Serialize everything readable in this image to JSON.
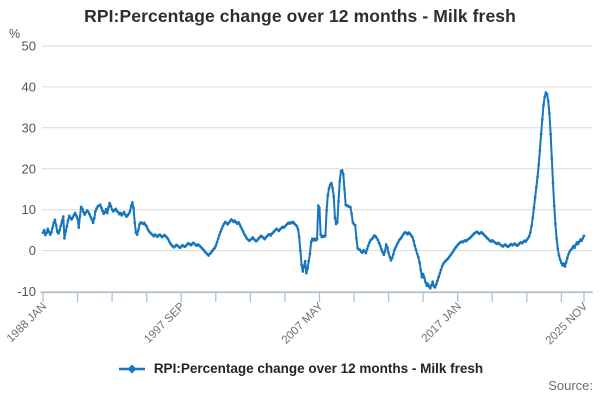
{
  "title": "RPI:Percentage change over 12 months - Milk fresh",
  "y_axis": {
    "unit_label": "%"
  },
  "legend": {
    "label": "RPI:Percentage change over 12 months - Milk fresh"
  },
  "source": {
    "label": "Source:"
  },
  "colors": {
    "line": "#1776bd",
    "grid": "#dadada",
    "axis": "#a9bdd3",
    "y_tick_text": "#555555",
    "x_tick_text": "#6f6f6f"
  },
  "chart_data": {
    "type": "line",
    "title": "RPI:Percentage change over 12 months - Milk fresh",
    "ylabel": "%",
    "ylim": [
      -10,
      50
    ],
    "y_ticks": [
      50,
      40,
      30,
      20,
      10,
      0,
      -10
    ],
    "grid": "horizontal",
    "legend_position": "bottom",
    "frequency": "monthly",
    "x_start": "1988 JAN",
    "x_end": "2025 NOV",
    "x_tick_labels": [
      {
        "month_index": 0,
        "label": "1988 JAN"
      },
      {
        "month_index": 116,
        "label": "1997 SEP"
      },
      {
        "month_index": 232,
        "label": "2007 MAY"
      },
      {
        "month_index": 348,
        "label": "2017 JAN"
      },
      {
        "month_index": 454,
        "label": "2025 NOV"
      }
    ],
    "minor_tick_interval_months": 29,
    "series": [
      {
        "name": "RPI:Percentage change over 12 months - Milk fresh",
        "values": [
          4.4,
          5.0,
          3.8,
          4.3,
          5.3,
          4.6,
          3.9,
          4.4,
          5.6,
          6.8,
          7.5,
          6.2,
          4.6,
          4.2,
          5.0,
          6.1,
          7.3,
          8.3,
          3.0,
          4.6,
          5.9,
          7.4,
          8.5,
          8.0,
          7.6,
          8.1,
          8.7,
          9.2,
          8.5,
          7.8,
          5.6,
          8.4,
          10.7,
          10.2,
          9.4,
          8.8,
          9.3,
          9.8,
          9.5,
          8.9,
          8.2,
          7.6,
          6.8,
          7.9,
          9.6,
          10.3,
          10.8,
          11.0,
          11.2,
          10.5,
          9.7,
          9.0,
          9.4,
          10.1,
          9.2,
          10.6,
          11.6,
          10.9,
          10.0,
          9.6,
          9.9,
          10.2,
          9.7,
          9.4,
          8.9,
          9.2,
          8.6,
          9.0,
          9.4,
          8.8,
          8.3,
          8.6,
          9.0,
          9.6,
          10.9,
          11.8,
          10.4,
          6.8,
          4.4,
          3.9,
          5.0,
          6.4,
          6.9,
          6.7,
          6.5,
          6.8,
          6.3,
          5.9,
          5.2,
          4.7,
          4.4,
          4.1,
          3.8,
          3.5,
          3.9,
          3.7,
          3.4,
          3.7,
          3.9,
          3.6,
          3.3,
          3.6,
          3.8,
          3.5,
          3.2,
          2.8,
          2.2,
          1.7,
          1.3,
          1.0,
          0.8,
          1.1,
          1.4,
          1.2,
          0.9,
          0.7,
          1.0,
          1.3,
          1.1,
          0.9,
          1.2,
          1.5,
          1.8,
          1.6,
          1.3,
          1.6,
          1.9,
          1.7,
          1.4,
          1.2,
          1.5,
          1.3,
          1.0,
          0.7,
          0.4,
          0.1,
          -0.3,
          -0.6,
          -0.9,
          -1.2,
          -0.8,
          -0.5,
          -0.1,
          0.3,
          0.6,
          1.2,
          2.0,
          2.9,
          3.8,
          4.6,
          5.3,
          6.0,
          6.6,
          7.0,
          6.7,
          6.4,
          6.8,
          7.2,
          7.6,
          7.4,
          7.0,
          7.3,
          6.9,
          6.6,
          6.9,
          6.4,
          5.8,
          5.2,
          4.6,
          4.0,
          3.5,
          3.0,
          2.7,
          2.4,
          2.6,
          2.9,
          3.2,
          2.8,
          2.5,
          2.3,
          2.6,
          3.0,
          3.3,
          3.6,
          3.4,
          3.1,
          2.8,
          3.2,
          3.5,
          3.8,
          4.0,
          3.7,
          4.1,
          4.4,
          4.7,
          5.0,
          5.3,
          5.1,
          4.8,
          5.2,
          5.5,
          5.8,
          5.6,
          5.9,
          6.2,
          6.5,
          6.8,
          6.6,
          6.9,
          6.7,
          7.0,
          6.6,
          6.3,
          6.0,
          5.2,
          3.3,
          0.0,
          -3.5,
          -5.1,
          -3.8,
          -2.6,
          -5.5,
          -4.4,
          -2.6,
          -0.8,
          2.1,
          2.9,
          2.5,
          2.9,
          2.5,
          2.8,
          11.0,
          10.4,
          3.9,
          3.3,
          3.6,
          3.4,
          3.7,
          9.8,
          13.5,
          15.2,
          16.1,
          16.5,
          15.3,
          13.2,
          8.0,
          6.5,
          6.9,
          12.0,
          16.9,
          19.4,
          19.6,
          18.7,
          15.0,
          11.2,
          10.9,
          11.0,
          10.7,
          10.6,
          9.0,
          6.9,
          6.4,
          6.2,
          3.0,
          0.6,
          0.3,
          0.2,
          -0.3,
          -0.5,
          0.1,
          -0.2,
          -0.6,
          0.4,
          1.2,
          2.0,
          2.6,
          2.8,
          3.2,
          3.7,
          3.5,
          3.1,
          2.6,
          1.9,
          1.2,
          0.3,
          -0.4,
          -1.0,
          -0.2,
          1.5,
          0.8,
          -0.6,
          -1.5,
          -2.4,
          -1.8,
          -0.9,
          0.2,
          0.8,
          1.4,
          2.0,
          2.6,
          2.9,
          3.3,
          3.8,
          4.2,
          4.5,
          4.3,
          4.0,
          4.4,
          4.1,
          3.7,
          3.3,
          2.4,
          1.2,
          0.2,
          -0.8,
          -1.6,
          -2.9,
          -4.7,
          -6.5,
          -5.7,
          -6.6,
          -7.7,
          -8.6,
          -8.1,
          -8.8,
          -9.2,
          -8.4,
          -7.6,
          -8.7,
          -9.0,
          -8.2,
          -7.4,
          -6.5,
          -5.6,
          -4.7,
          -3.8,
          -3.2,
          -2.8,
          -2.5,
          -2.2,
          -1.9,
          -1.5,
          -1.1,
          -0.7,
          -0.3,
          0.2,
          0.6,
          1.0,
          1.4,
          1.7,
          2.0,
          2.2,
          2.0,
          2.3,
          2.5,
          2.3,
          2.6,
          2.8,
          3.0,
          3.3,
          3.6,
          3.9,
          4.2,
          4.4,
          4.6,
          4.4,
          4.1,
          4.3,
          4.5,
          4.2,
          3.9,
          3.6,
          3.3,
          3.0,
          2.7,
          2.4,
          2.2,
          2.5,
          2.3,
          2.0,
          1.8,
          1.6,
          1.9,
          1.7,
          1.4,
          1.2,
          1.0,
          1.3,
          1.5,
          1.2,
          0.9,
          1.1,
          1.4,
          1.6,
          1.3,
          1.5,
          1.7,
          1.4,
          1.2,
          1.5,
          1.8,
          2.0,
          1.8,
          2.1,
          2.4,
          2.2,
          2.6,
          3.0,
          3.5,
          4.5,
          6.0,
          8.0,
          10.5,
          13.0,
          15.5,
          18.0,
          21.0,
          24.5,
          28.5,
          32.0,
          35.5,
          37.5,
          38.6,
          38.2,
          36.5,
          33.5,
          28.5,
          22.5,
          16.5,
          11.0,
          6.5,
          3.0,
          0.5,
          -1.2,
          -2.2,
          -3.0,
          -3.6,
          -3.2,
          -3.9,
          -2.9,
          -1.8,
          -0.9,
          -0.2,
          0.2,
          0.5,
          1.1,
          0.7,
          1.4,
          2.0,
          1.6,
          2.2,
          2.7,
          2.4,
          3.0,
          3.6
        ]
      }
    ]
  }
}
